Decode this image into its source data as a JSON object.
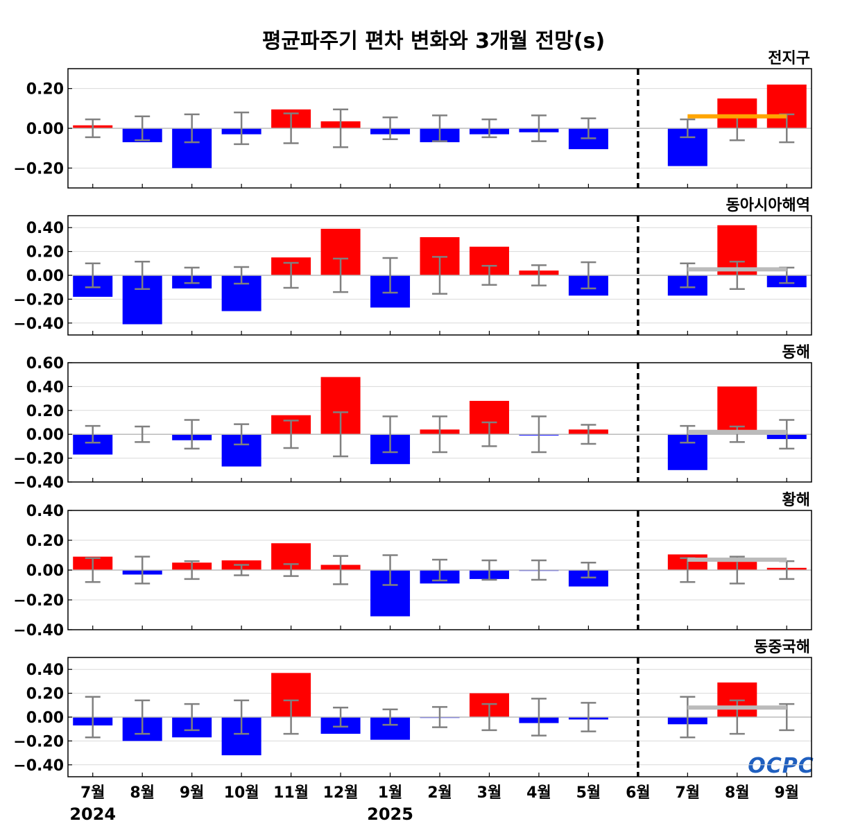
{
  "title": "평균파주기 편차 변화와 3개월 전망(s)",
  "logo_text": "OCPC",
  "colors": {
    "positive": "#ff0000",
    "negative": "#0000ff",
    "errorbar": "#808080",
    "forecast_line_global": "#ffa500",
    "forecast_line_regional": "#bbbbbb",
    "grid": "#d9d9d9",
    "zero": "#bbbbbb",
    "divider": "#000000",
    "logo": "#1f5fbf"
  },
  "chart_data": {
    "type": "bar",
    "categories": [
      "7월",
      "8월",
      "9월",
      "10월",
      "11월",
      "12월",
      "1월",
      "2월",
      "3월",
      "4월",
      "5월",
      "6월",
      "7월",
      "8월",
      "9월"
    ],
    "year_labels": [
      {
        "category_index": 0,
        "label": "2024"
      },
      {
        "category_index": 6,
        "label": "2025"
      }
    ],
    "forecast_divider_after_index": 11,
    "panels": [
      {
        "name": "전지구",
        "ylim": [
          -0.3,
          0.3
        ],
        "yticks": [
          -0.2,
          0.0,
          0.2
        ],
        "values": [
          0.015,
          -0.07,
          -0.2,
          -0.03,
          0.095,
          0.035,
          -0.03,
          -0.07,
          -0.03,
          -0.02,
          -0.105,
          0,
          -0.19,
          0.15,
          0.22
        ],
        "error": [
          0.045,
          0.06,
          0.07,
          0.08,
          0.075,
          0.095,
          0.055,
          0.065,
          0.045,
          0.065,
          0.05,
          0,
          0.045,
          0.06,
          0.07
        ],
        "forecast_mean": 0.06,
        "forecast_line_color": "orange"
      },
      {
        "name": "동아시아해역",
        "ylim": [
          -0.5,
          0.5
        ],
        "yticks": [
          -0.4,
          -0.2,
          0.0,
          0.2,
          0.4
        ],
        "values": [
          -0.18,
          -0.41,
          -0.11,
          -0.3,
          0.15,
          0.39,
          -0.27,
          0.32,
          0.24,
          0.04,
          -0.17,
          0,
          -0.17,
          0.42,
          -0.1
        ],
        "error": [
          0.1,
          0.115,
          0.065,
          0.07,
          0.105,
          0.14,
          0.145,
          0.155,
          0.08,
          0.085,
          0.11,
          0,
          0.1,
          0.115,
          0.065
        ],
        "forecast_mean": 0.05,
        "forecast_line_color": "gray"
      },
      {
        "name": "동해",
        "ylim": [
          -0.4,
          0.6
        ],
        "yticks": [
          -0.4,
          -0.2,
          0.0,
          0.2,
          0.4,
          0.6
        ],
        "values": [
          -0.17,
          0.0,
          -0.05,
          -0.27,
          0.16,
          0.48,
          -0.25,
          0.04,
          0.28,
          -0.01,
          0.04,
          0,
          -0.3,
          0.4,
          -0.04
        ],
        "error": [
          0.07,
          0.065,
          0.12,
          0.085,
          0.115,
          0.185,
          0.15,
          0.15,
          0.1,
          0.15,
          0.08,
          0,
          0.07,
          0.065,
          0.12
        ],
        "forecast_mean": 0.02,
        "forecast_line_color": "gray"
      },
      {
        "name": "황해",
        "ylim": [
          -0.4,
          0.4
        ],
        "yticks": [
          -0.4,
          -0.2,
          0.0,
          0.2,
          0.4
        ],
        "values": [
          0.09,
          -0.03,
          0.05,
          0.065,
          0.18,
          0.035,
          -0.31,
          -0.09,
          -0.06,
          -0.005,
          -0.11,
          0,
          0.105,
          0.055,
          0.015
        ],
        "error": [
          0.08,
          0.09,
          0.06,
          0.035,
          0.04,
          0.095,
          0.1,
          0.07,
          0.065,
          0.065,
          0.05,
          0,
          0.08,
          0.09,
          0.06
        ],
        "forecast_mean": 0.07,
        "forecast_line_color": "gray"
      },
      {
        "name": "동중국해",
        "ylim": [
          -0.5,
          0.5
        ],
        "yticks": [
          -0.4,
          -0.2,
          0.0,
          0.2,
          0.4
        ],
        "values": [
          -0.07,
          -0.2,
          -0.17,
          -0.32,
          0.37,
          -0.14,
          -0.19,
          -0.005,
          0.2,
          -0.05,
          -0.02,
          0,
          -0.06,
          0.29,
          0.0
        ],
        "error": [
          0.17,
          0.14,
          0.11,
          0.14,
          0.14,
          0.08,
          0.065,
          0.085,
          0.11,
          0.155,
          0.12,
          0,
          0.17,
          0.14,
          0.11
        ],
        "forecast_mean": 0.08,
        "forecast_line_color": "gray"
      }
    ]
  }
}
